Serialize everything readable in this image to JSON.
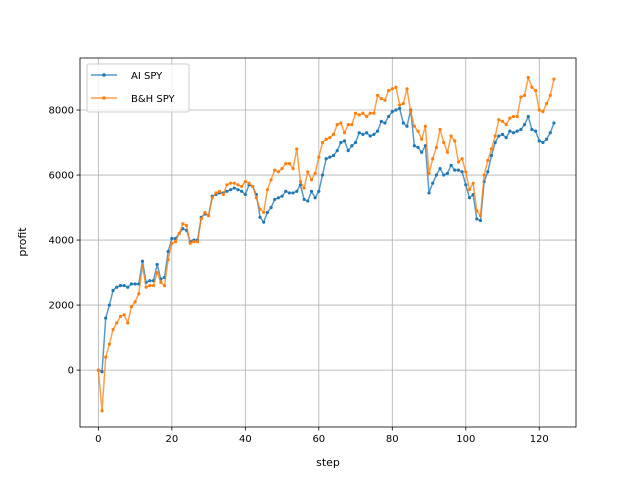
{
  "chart_data": {
    "type": "line",
    "xlabel": "step",
    "ylabel": "profit",
    "xlim": [
      -5,
      130
    ],
    "ylim": [
      -1750,
      9600
    ],
    "xticks": [
      0,
      20,
      40,
      60,
      80,
      100,
      120
    ],
    "yticks": [
      0,
      2000,
      4000,
      6000,
      8000
    ],
    "grid": true,
    "legend_position": "upper-left",
    "series": [
      {
        "name": "AI SPY",
        "color": "#1f77b4",
        "values": [
          0,
          -50,
          1600,
          2000,
          2450,
          2550,
          2600,
          2600,
          2550,
          2650,
          2650,
          2650,
          3350,
          2700,
          2750,
          2750,
          3250,
          2800,
          2850,
          3650,
          4050,
          4050,
          4200,
          4350,
          4300,
          3950,
          4000,
          4000,
          4700,
          4800,
          4750,
          5350,
          5400,
          5450,
          5450,
          5500,
          5550,
          5600,
          5550,
          5500,
          5400,
          5700,
          5650,
          5400,
          4700,
          4550,
          4850,
          5000,
          5250,
          5300,
          5350,
          5500,
          5450,
          5450,
          5500,
          5700,
          5250,
          5200,
          5500,
          5300,
          5500,
          6000,
          6500,
          6550,
          6600,
          6750,
          7000,
          7050,
          6750,
          6900,
          7000,
          7300,
          7250,
          7300,
          7200,
          7250,
          7350,
          7650,
          7600,
          7800,
          7950,
          8000,
          8050,
          7600,
          7500,
          8000,
          6900,
          6850,
          6700,
          6900,
          5450,
          5750,
          6000,
          6200,
          6000,
          6050,
          6300,
          6150,
          6150,
          6100,
          5700,
          5300,
          5400,
          4650,
          4600,
          5800,
          6100,
          6600,
          7000,
          7200,
          7250,
          7150,
          7350,
          7300,
          7350,
          7400,
          7550,
          7800,
          7400,
          7350,
          7050,
          7000,
          7100,
          7300,
          7600
        ]
      },
      {
        "name": "B&H SPY",
        "color": "#ff7f0e",
        "values": [
          0,
          -1250,
          400,
          800,
          1250,
          1450,
          1650,
          1700,
          1450,
          1950,
          2100,
          2350,
          3200,
          2550,
          2600,
          2600,
          3000,
          2700,
          2600,
          3400,
          3900,
          3950,
          4200,
          4500,
          4450,
          3900,
          3950,
          3950,
          4650,
          4850,
          4750,
          5300,
          5450,
          5500,
          5400,
          5700,
          5750,
          5750,
          5700,
          5650,
          5800,
          5750,
          5650,
          5300,
          4950,
          4850,
          5550,
          5850,
          6150,
          6100,
          6200,
          6350,
          6350,
          6200,
          6800,
          5800,
          5600,
          6100,
          5850,
          6050,
          6550,
          7000,
          7100,
          7150,
          7250,
          7550,
          7600,
          7300,
          7550,
          7550,
          7900,
          7850,
          7900,
          7800,
          7900,
          7900,
          8450,
          8350,
          8300,
          8600,
          8650,
          8700,
          8150,
          8200,
          8650,
          7950,
          7500,
          7350,
          7100,
          7500,
          6050,
          6500,
          6850,
          7400,
          7000,
          6700,
          7200,
          7050,
          6400,
          6500,
          6100,
          5550,
          5750,
          4900,
          4750,
          6000,
          6450,
          6800,
          7200,
          7700,
          7650,
          7550,
          7750,
          7800,
          7800,
          8400,
          8450,
          9000,
          8700,
          8600,
          8000,
          7950,
          8200,
          8450,
          8950
        ]
      }
    ]
  }
}
